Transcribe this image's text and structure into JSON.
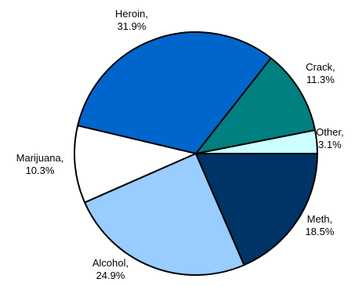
{
  "chart_data": {
    "type": "pie",
    "title": "",
    "start_angle_deg": 0,
    "direction": "counterclockwise",
    "slices": [
      {
        "label": "Other",
        "value_text": "3.1%",
        "value": 3.1,
        "color": "#ccffff"
      },
      {
        "label": "Crack",
        "value_text": "11.3%",
        "value": 11.3,
        "color": "#008080"
      },
      {
        "label": "Heroin",
        "value_text": "31.9%",
        "value": 31.9,
        "color": "#0066cc"
      },
      {
        "label": "Marijuana",
        "value_text": "10.3%",
        "value": 10.3,
        "color": "#ffffff"
      },
      {
        "label": "Alcohol",
        "value_text": "24.9%",
        "value": 24.9,
        "color": "#99ccff"
      },
      {
        "label": "Meth",
        "value_text": "18.5%",
        "value": 18.5,
        "color": "#003366"
      }
    ]
  }
}
